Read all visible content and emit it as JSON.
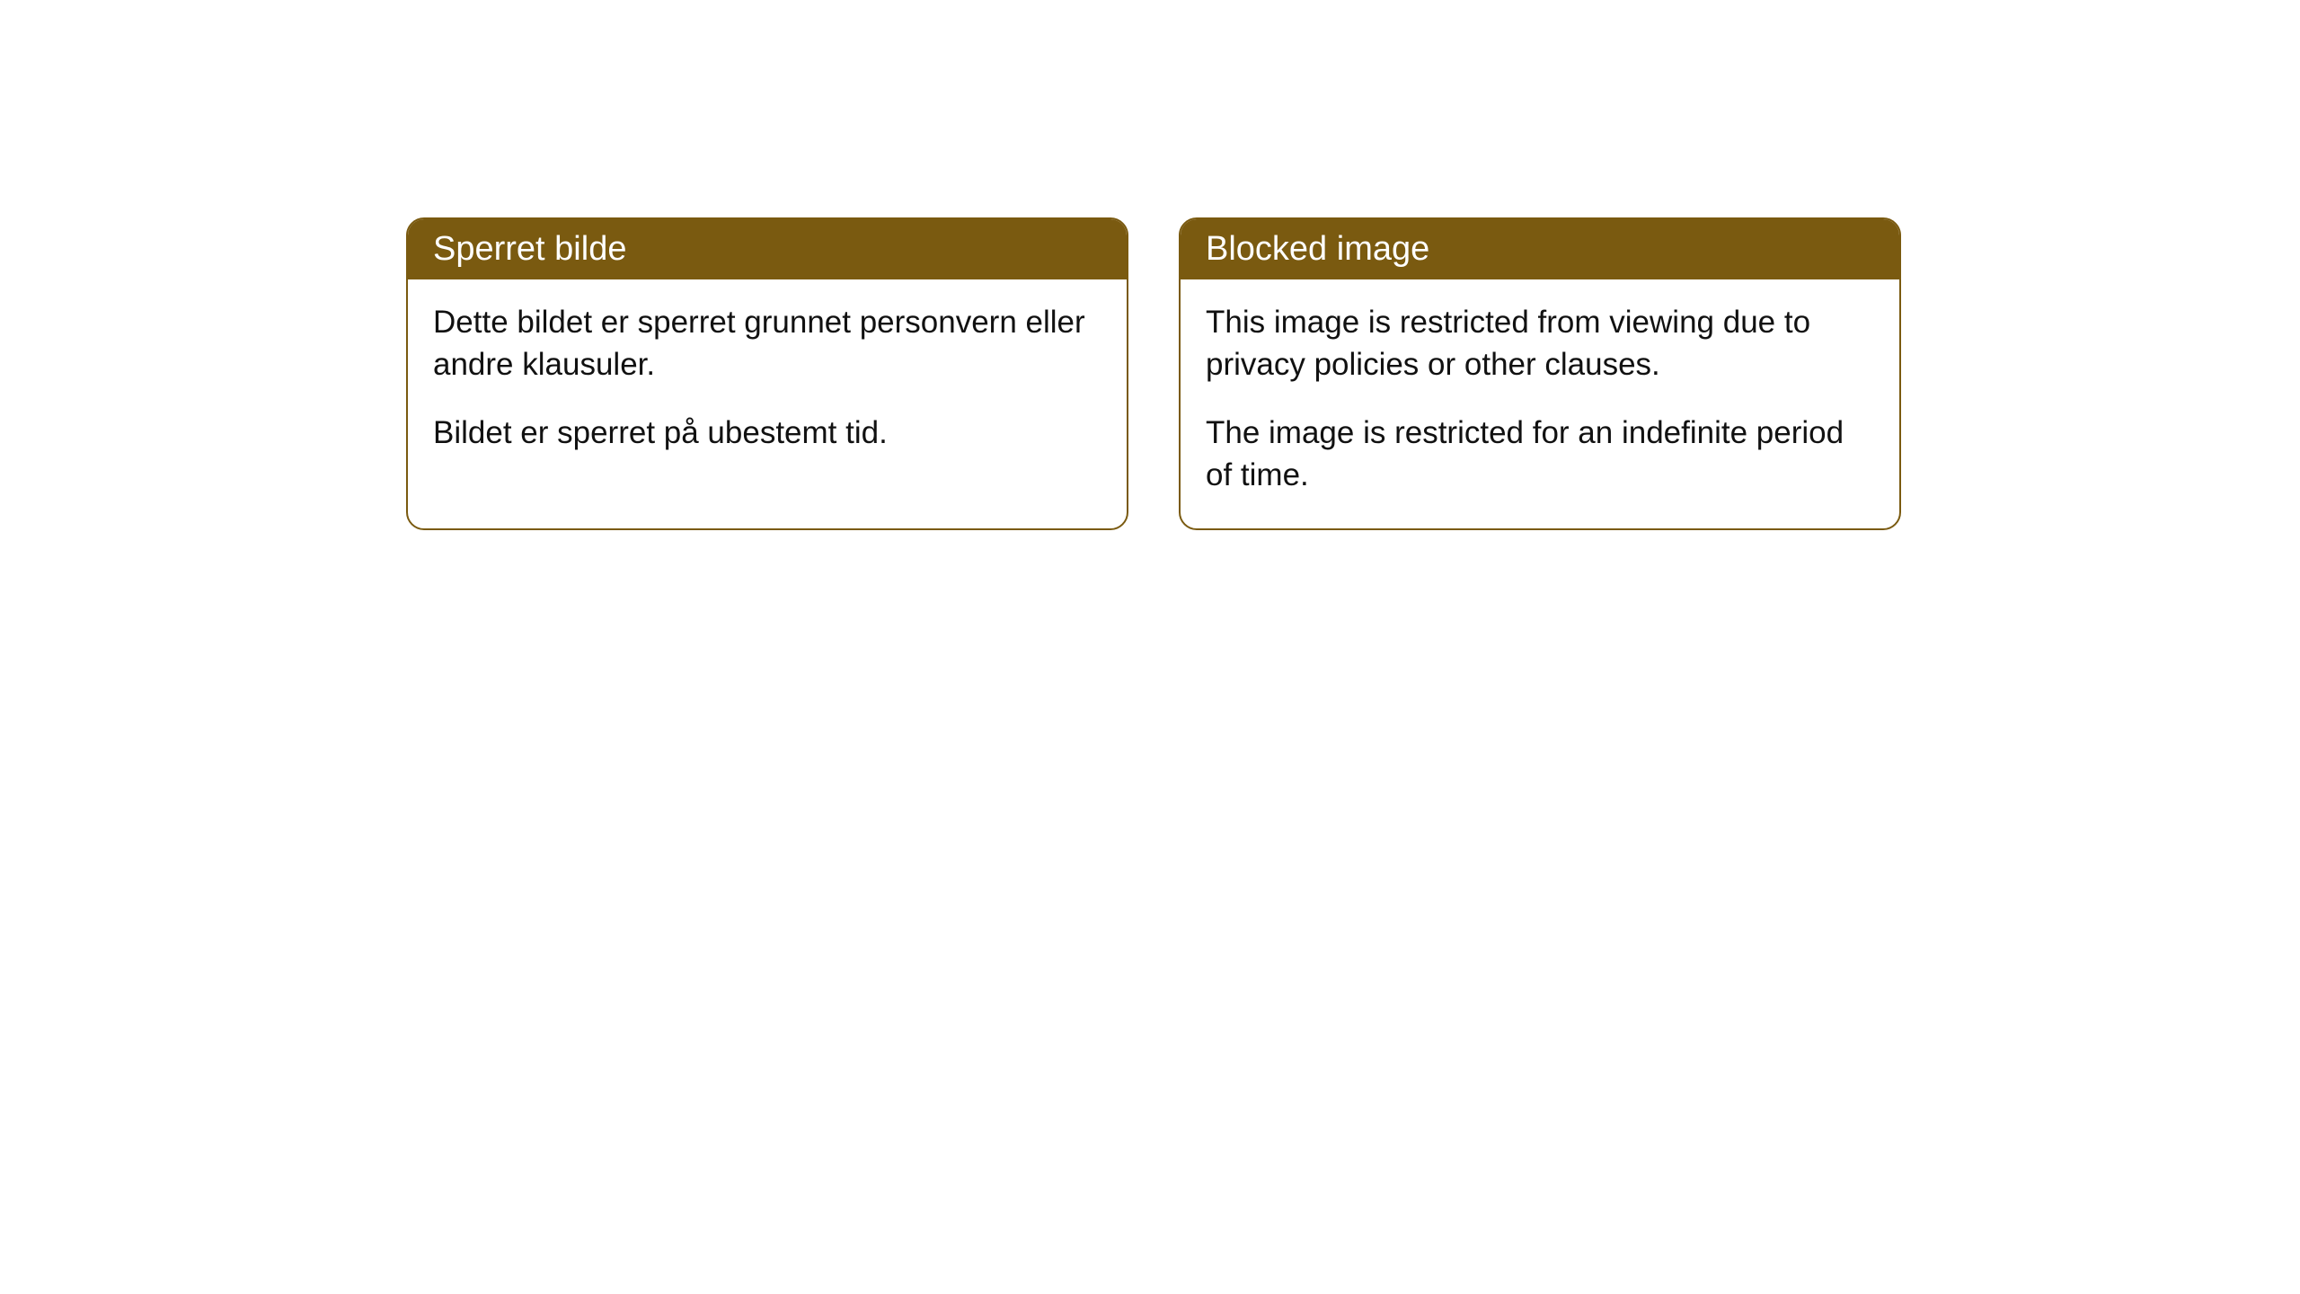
{
  "cards": [
    {
      "title": "Sperret bilde",
      "paragraph1": "Dette bildet er sperret grunnet personvern eller andre klausuler.",
      "paragraph2": "Bildet er sperret på ubestemt tid."
    },
    {
      "title": "Blocked image",
      "paragraph1": "This image is restricted from viewing due to privacy policies or other clauses.",
      "paragraph2": "The image is restricted for an indefinite period of time."
    }
  ],
  "style": {
    "header_bg": "#7a5a10",
    "header_color": "#ffffff",
    "border_color": "#7a5a10",
    "body_bg": "#ffffff",
    "body_color": "#111111",
    "border_radius": 20,
    "header_fontsize": 38,
    "body_fontsize": 35
  }
}
